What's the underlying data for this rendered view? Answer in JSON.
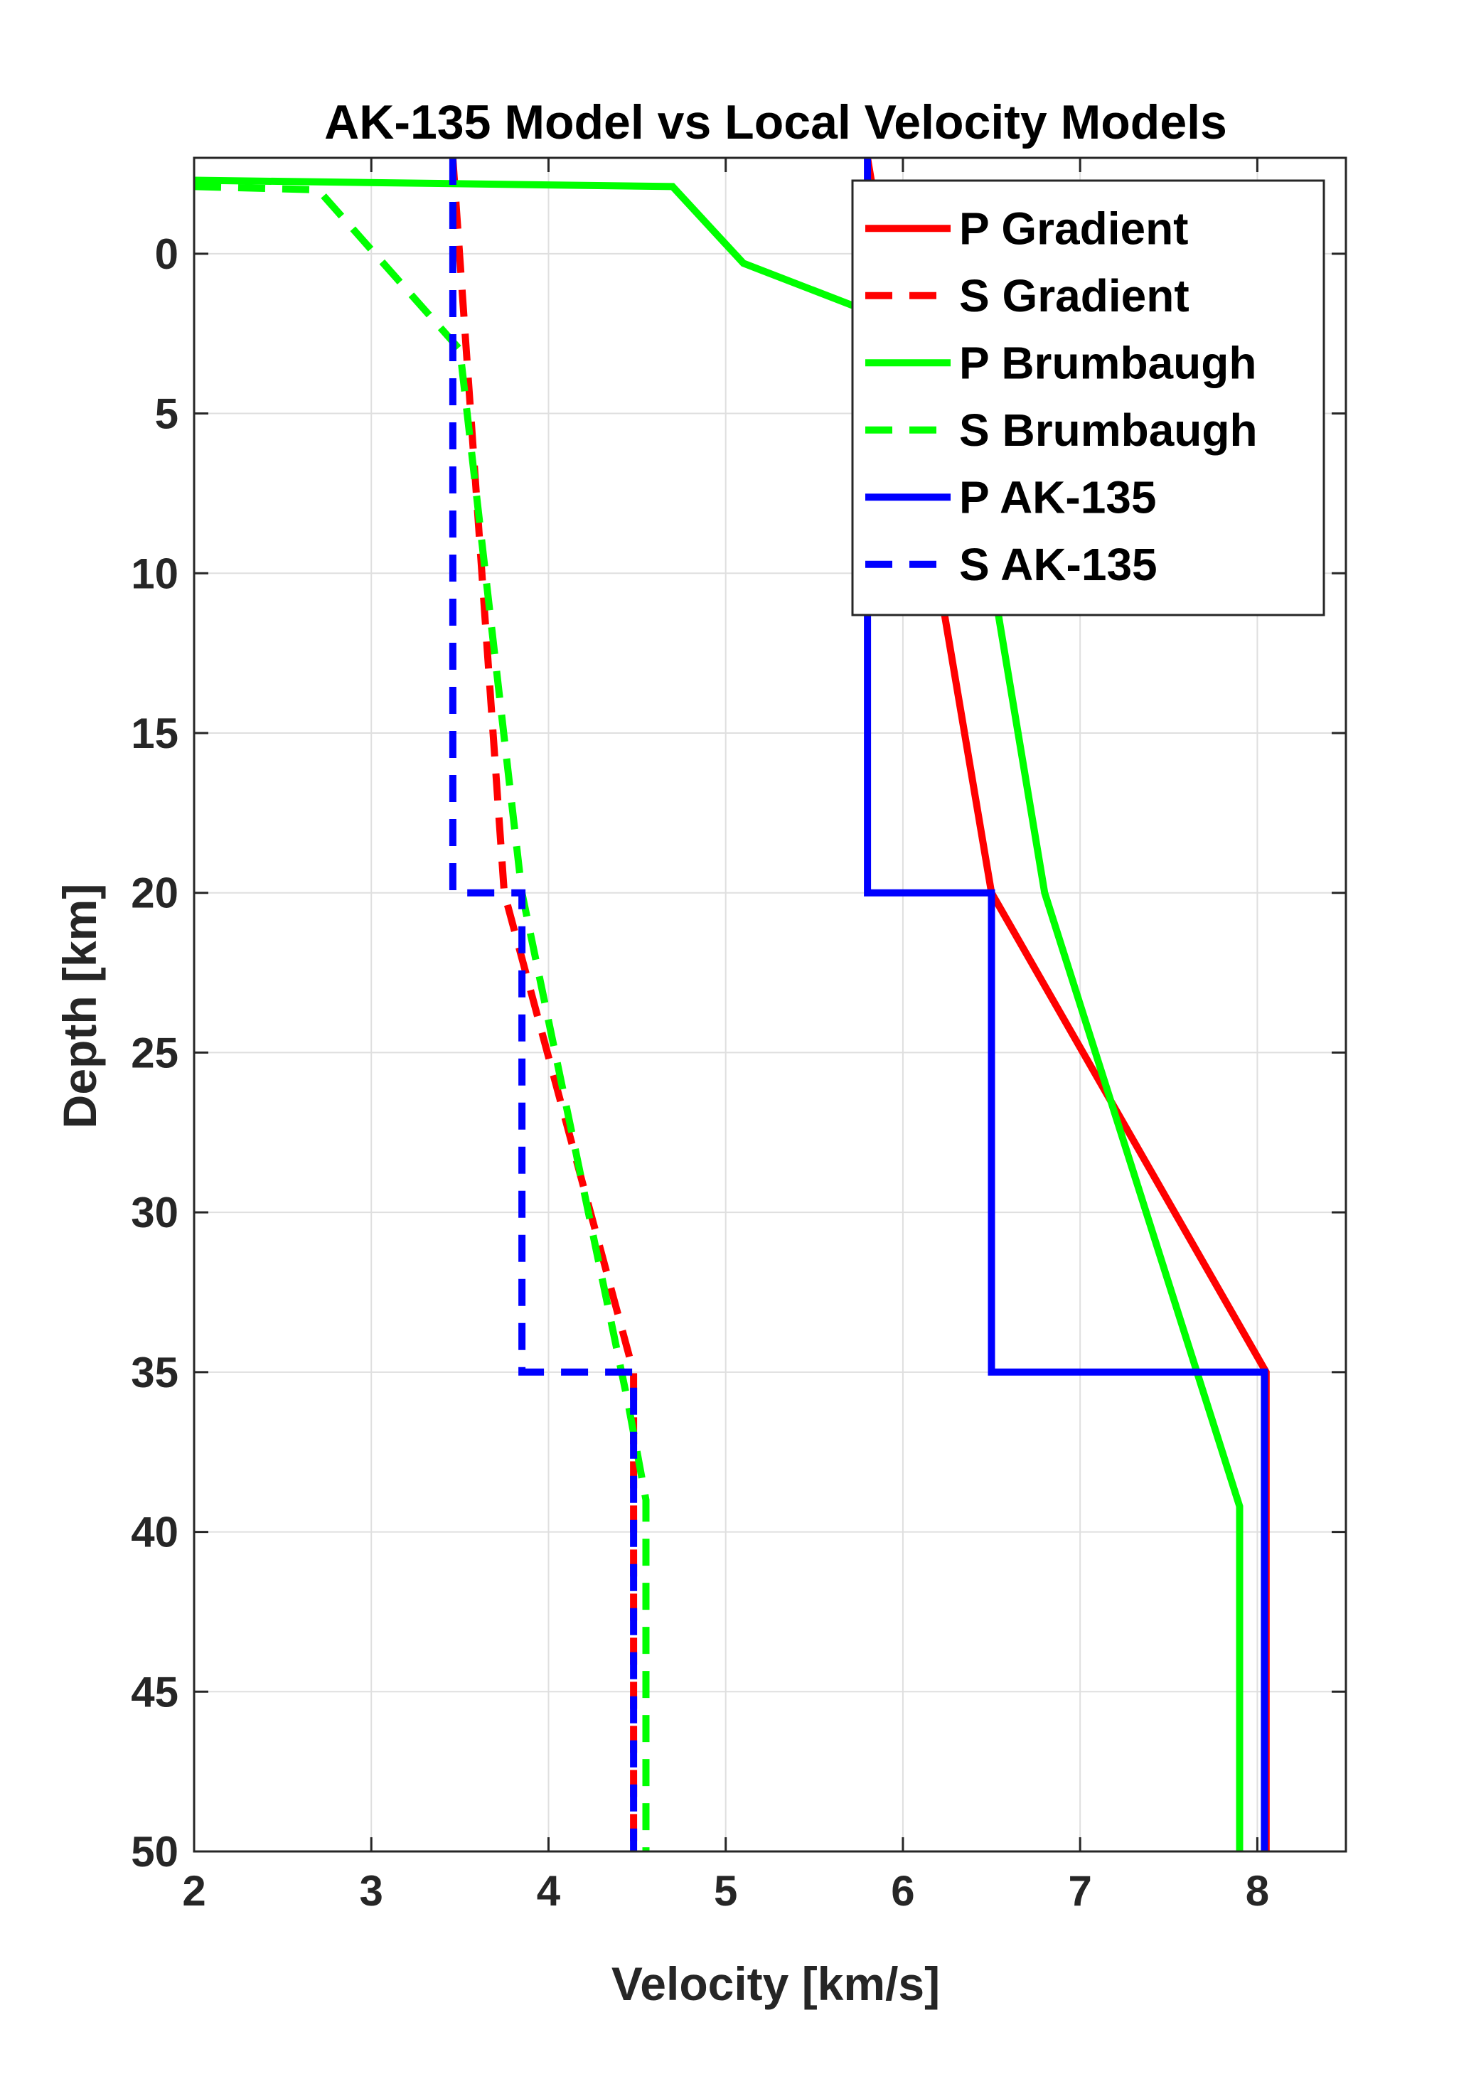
{
  "chart_data": {
    "type": "line",
    "title": "AK-135 Model vs Local Velocity Models",
    "xlabel": "Velocity [km/s]",
    "ylabel": "Depth [km]",
    "xlim": [
      2,
      8.5
    ],
    "ylim": [
      -3,
      50
    ],
    "y_reversed": true,
    "grid": true,
    "legend_position": "top-right",
    "xticks": [
      2,
      3,
      4,
      5,
      6,
      7,
      8
    ],
    "yticks": [
      0,
      5,
      10,
      15,
      20,
      25,
      30,
      35,
      40,
      45,
      50
    ],
    "series": [
      {
        "name": "P Gradient",
        "color": "#ff0000",
        "dash": "solid",
        "points": [
          [
            5.8,
            -3
          ],
          [
            6.5,
            20
          ],
          [
            8.05,
            35
          ],
          [
            8.05,
            50
          ]
        ]
      },
      {
        "name": "S Gradient",
        "color": "#ff0000",
        "dash": "dashed",
        "points": [
          [
            3.46,
            -3
          ],
          [
            3.75,
            20
          ],
          [
            4.48,
            35
          ],
          [
            4.48,
            50
          ]
        ]
      },
      {
        "name": "P Brumbaugh",
        "color": "#00ff00",
        "dash": "solid",
        "points": [
          [
            2.0,
            -2.3
          ],
          [
            4.7,
            -2.1
          ],
          [
            5.1,
            0.3
          ],
          [
            5.8,
            1.8
          ],
          [
            6.5,
            10
          ],
          [
            6.8,
            20
          ],
          [
            7.9,
            39.2
          ],
          [
            7.9,
            50
          ]
        ]
      },
      {
        "name": "S Brumbaugh",
        "color": "#00ff00",
        "dash": "dashed",
        "points": [
          [
            2.0,
            -2.1
          ],
          [
            2.7,
            -2.0
          ],
          [
            3.5,
            3
          ],
          [
            3.85,
            20
          ],
          [
            4.45,
            36
          ],
          [
            4.55,
            39
          ],
          [
            4.55,
            50
          ]
        ]
      },
      {
        "name": "P AK-135",
        "color": "#0000ff",
        "dash": "solid",
        "points": [
          [
            5.8,
            -3
          ],
          [
            5.8,
            20
          ],
          [
            6.5,
            20
          ],
          [
            6.5,
            35
          ],
          [
            8.04,
            35
          ],
          [
            8.04,
            50
          ]
        ]
      },
      {
        "name": "S AK-135",
        "color": "#0000ff",
        "dash": "dashed",
        "points": [
          [
            3.46,
            -3
          ],
          [
            3.46,
            20
          ],
          [
            3.85,
            20
          ],
          [
            3.85,
            35
          ],
          [
            4.48,
            35
          ],
          [
            4.48,
            50
          ]
        ]
      }
    ]
  }
}
